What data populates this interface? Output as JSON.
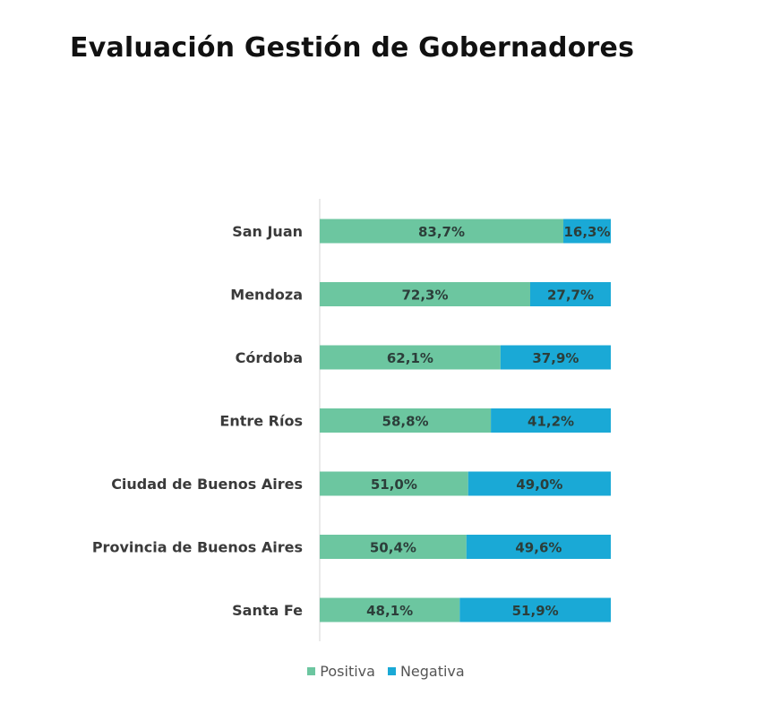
{
  "chart_data": {
    "type": "bar",
    "orientation": "horizontal",
    "stacked": true,
    "title": "Evaluación Gestión de Gobernadores",
    "categories": [
      "San Juan",
      "Mendoza",
      "Córdoba",
      "Entre Ríos",
      "Ciudad de Buenos Aires",
      "Provincia de Buenos Aires",
      "Santa Fe"
    ],
    "series": [
      {
        "name": "Positiva",
        "color": "#6cc6a0",
        "values": [
          83.7,
          72.3,
          62.1,
          58.8,
          51.0,
          50.4,
          48.1
        ],
        "labels": [
          "83,7%",
          "72,3%",
          "62,1%",
          "58,8%",
          "51,0%",
          "50,4%",
          "48,1%"
        ]
      },
      {
        "name": "Negativa",
        "color": "#1aa9d6",
        "values": [
          16.3,
          27.7,
          37.9,
          41.2,
          49.0,
          49.6,
          51.9
        ],
        "labels": [
          "16,3%",
          "27,7%",
          "37,9%",
          "41,2%",
          "49,0%",
          "49,6%",
          "51,9%"
        ]
      }
    ],
    "xlim": [
      0,
      100
    ],
    "grid": false,
    "legend_position": "bottom"
  }
}
